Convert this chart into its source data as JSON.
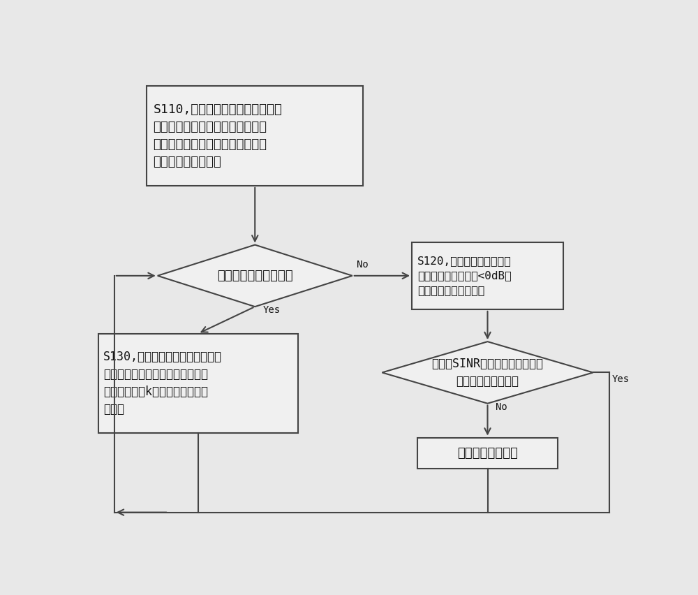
{
  "bg_color": "#e8e8e8",
  "box_fill": "#f0f0f0",
  "box_edge": "#444444",
  "arrow_color": "#444444",
  "text_color": "#111111",
  "box1_text": "S110,随机选择用户作为上行簇中\n心，根据干扰情况选择用户作为下\n行簇中心，将其余用户根据干扰状\n况分配至两个簇内。",
  "diamond1_text": "是否有新用户请求接入",
  "box2_text": "S130,设置该用户发送其他用户接\n收，测量并根据干扰将其分入某一\n簇内，并利用k均值算法选择新簇\n中心。",
  "box3_line1": "S120,遍历区域内用户，选",
  "box3_line2": "择信噪比小于门限（<0dB）",
  "box3_line3": "的用户，改变收发状态",
  "diamond2_line1": "该用户SINR提高且其他用户信噪",
  "diamond2_line2": "比下降不超过阈值？",
  "box4_text": "改变用户收发状态",
  "yes_label": "Yes",
  "no_label": "No"
}
